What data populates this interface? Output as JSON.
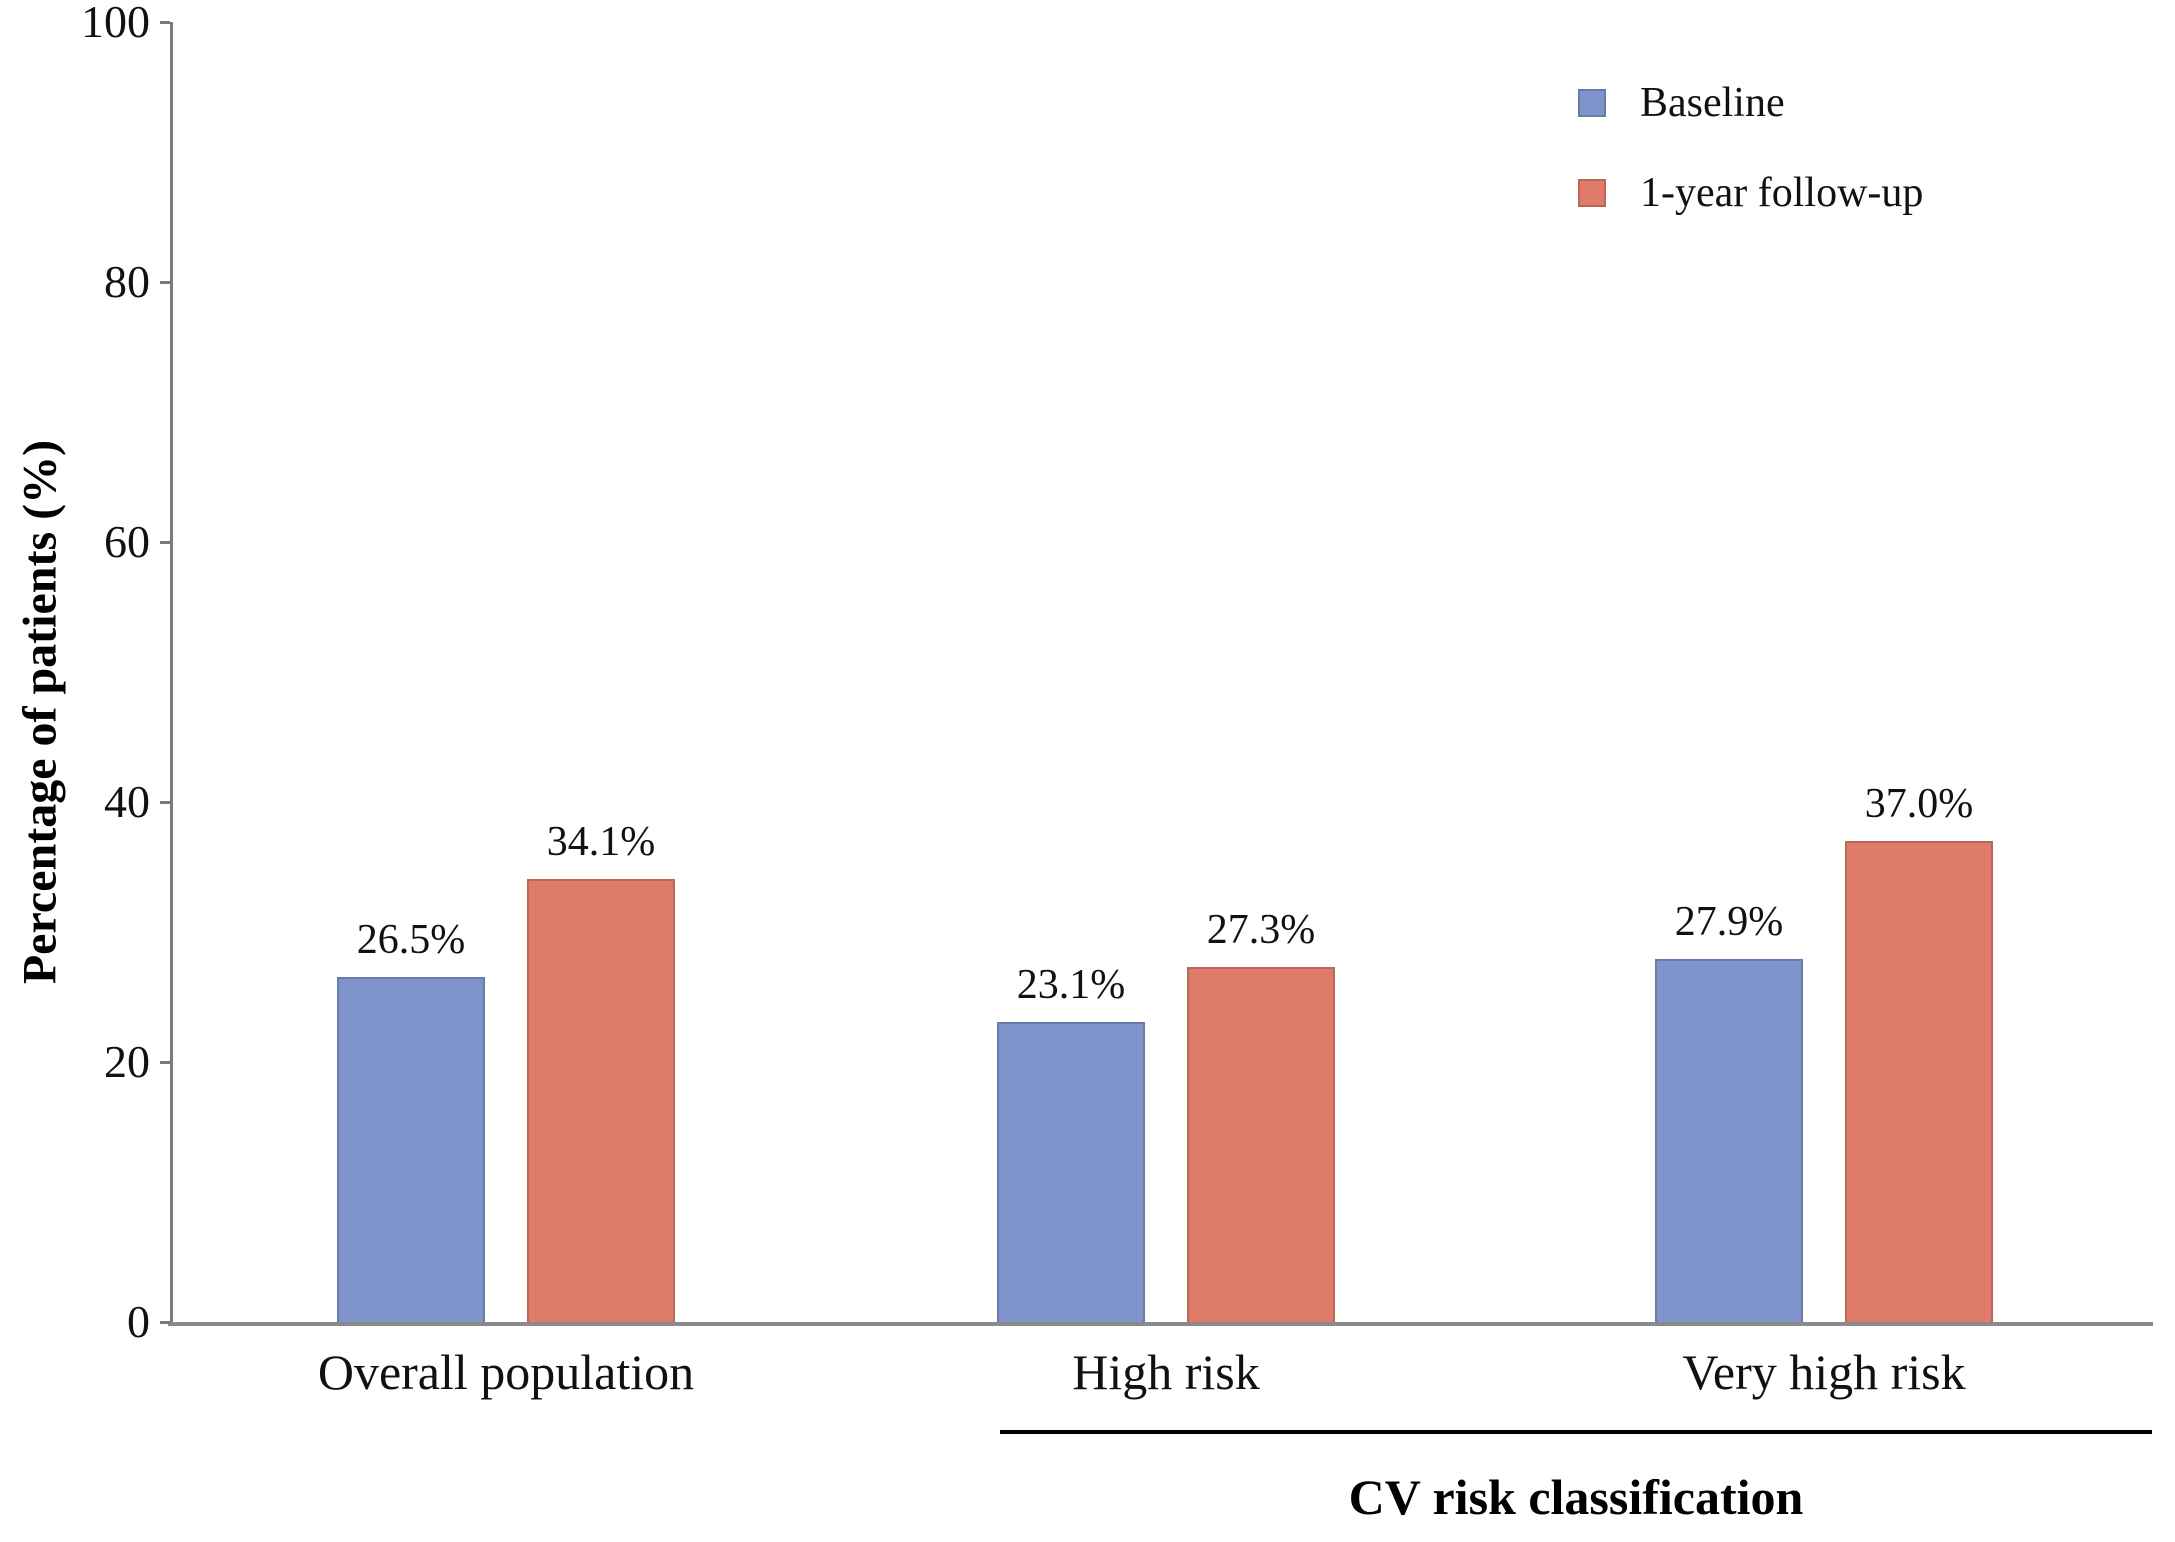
{
  "chart_data": {
    "type": "bar",
    "title": "",
    "categories": [
      "Overall population",
      "High risk",
      "Very high risk"
    ],
    "series": [
      {
        "name": "Baseline",
        "color": "#7E94CA",
        "values": [
          26.5,
          23.1,
          27.9
        ],
        "labels": [
          "26.5%",
          "23.1%",
          "27.9%"
        ]
      },
      {
        "name": "1-year follow-up",
        "color": "#DF7B69",
        "values": [
          34.1,
          27.3,
          37.0
        ],
        "labels": [
          "34.1%",
          "27.3%",
          "37.0%"
        ]
      }
    ],
    "xlabel": "CV risk classification",
    "xlabel_underline_spans": [
      "High risk",
      "Very high risk"
    ],
    "ylabel": "Percentage of patients (%)",
    "ylim": [
      0,
      100
    ],
    "yticks": [
      0,
      20,
      40,
      60,
      80,
      100
    ],
    "grid": false,
    "legend_position": "top-right",
    "axis_color": "#7A7A7A",
    "underline_color": "#000000",
    "background_color": "#FFFFFF",
    "text_color": "#111111"
  }
}
